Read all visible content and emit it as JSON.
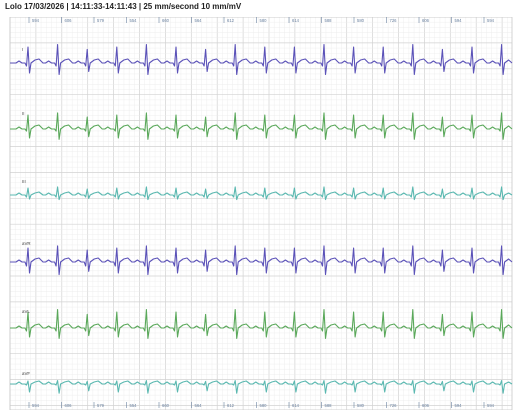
{
  "header": {
    "title": "Lolo  17/03/2026 | 14:11:33-14:11:43 | 25 mm/second 10 mm/mV"
  },
  "intervals": [
    "594",
    "606",
    "579",
    "554",
    "660",
    "564",
    "612",
    "580",
    "614",
    "588",
    "580",
    "726",
    "606",
    "594",
    "594"
  ],
  "intervals_bottom": [
    "594",
    "606",
    "579",
    "554",
    "660",
    "564",
    "612",
    "580",
    "614",
    "588",
    "580",
    "726",
    "606",
    "594",
    "594"
  ],
  "leads": [
    {
      "name": "I",
      "color": "#5b52b8",
      "style": "I"
    },
    {
      "name": "II",
      "color": "#5aa85a",
      "style": "II"
    },
    {
      "name": "III",
      "color": "#5ab8b0",
      "style": "III"
    },
    {
      "name": "aVR",
      "color": "#5b52b8",
      "style": "aVR"
    },
    {
      "name": "aVL",
      "color": "#5aa85a",
      "style": "aVL"
    },
    {
      "name": "aVF",
      "color": "#5ab8b0",
      "style": "aVF"
    }
  ],
  "colors": {
    "grid_minor": "#ebebeb",
    "grid_major": "#d2d2d2",
    "label": "#444444",
    "interval_text": "#6b82a0"
  }
}
